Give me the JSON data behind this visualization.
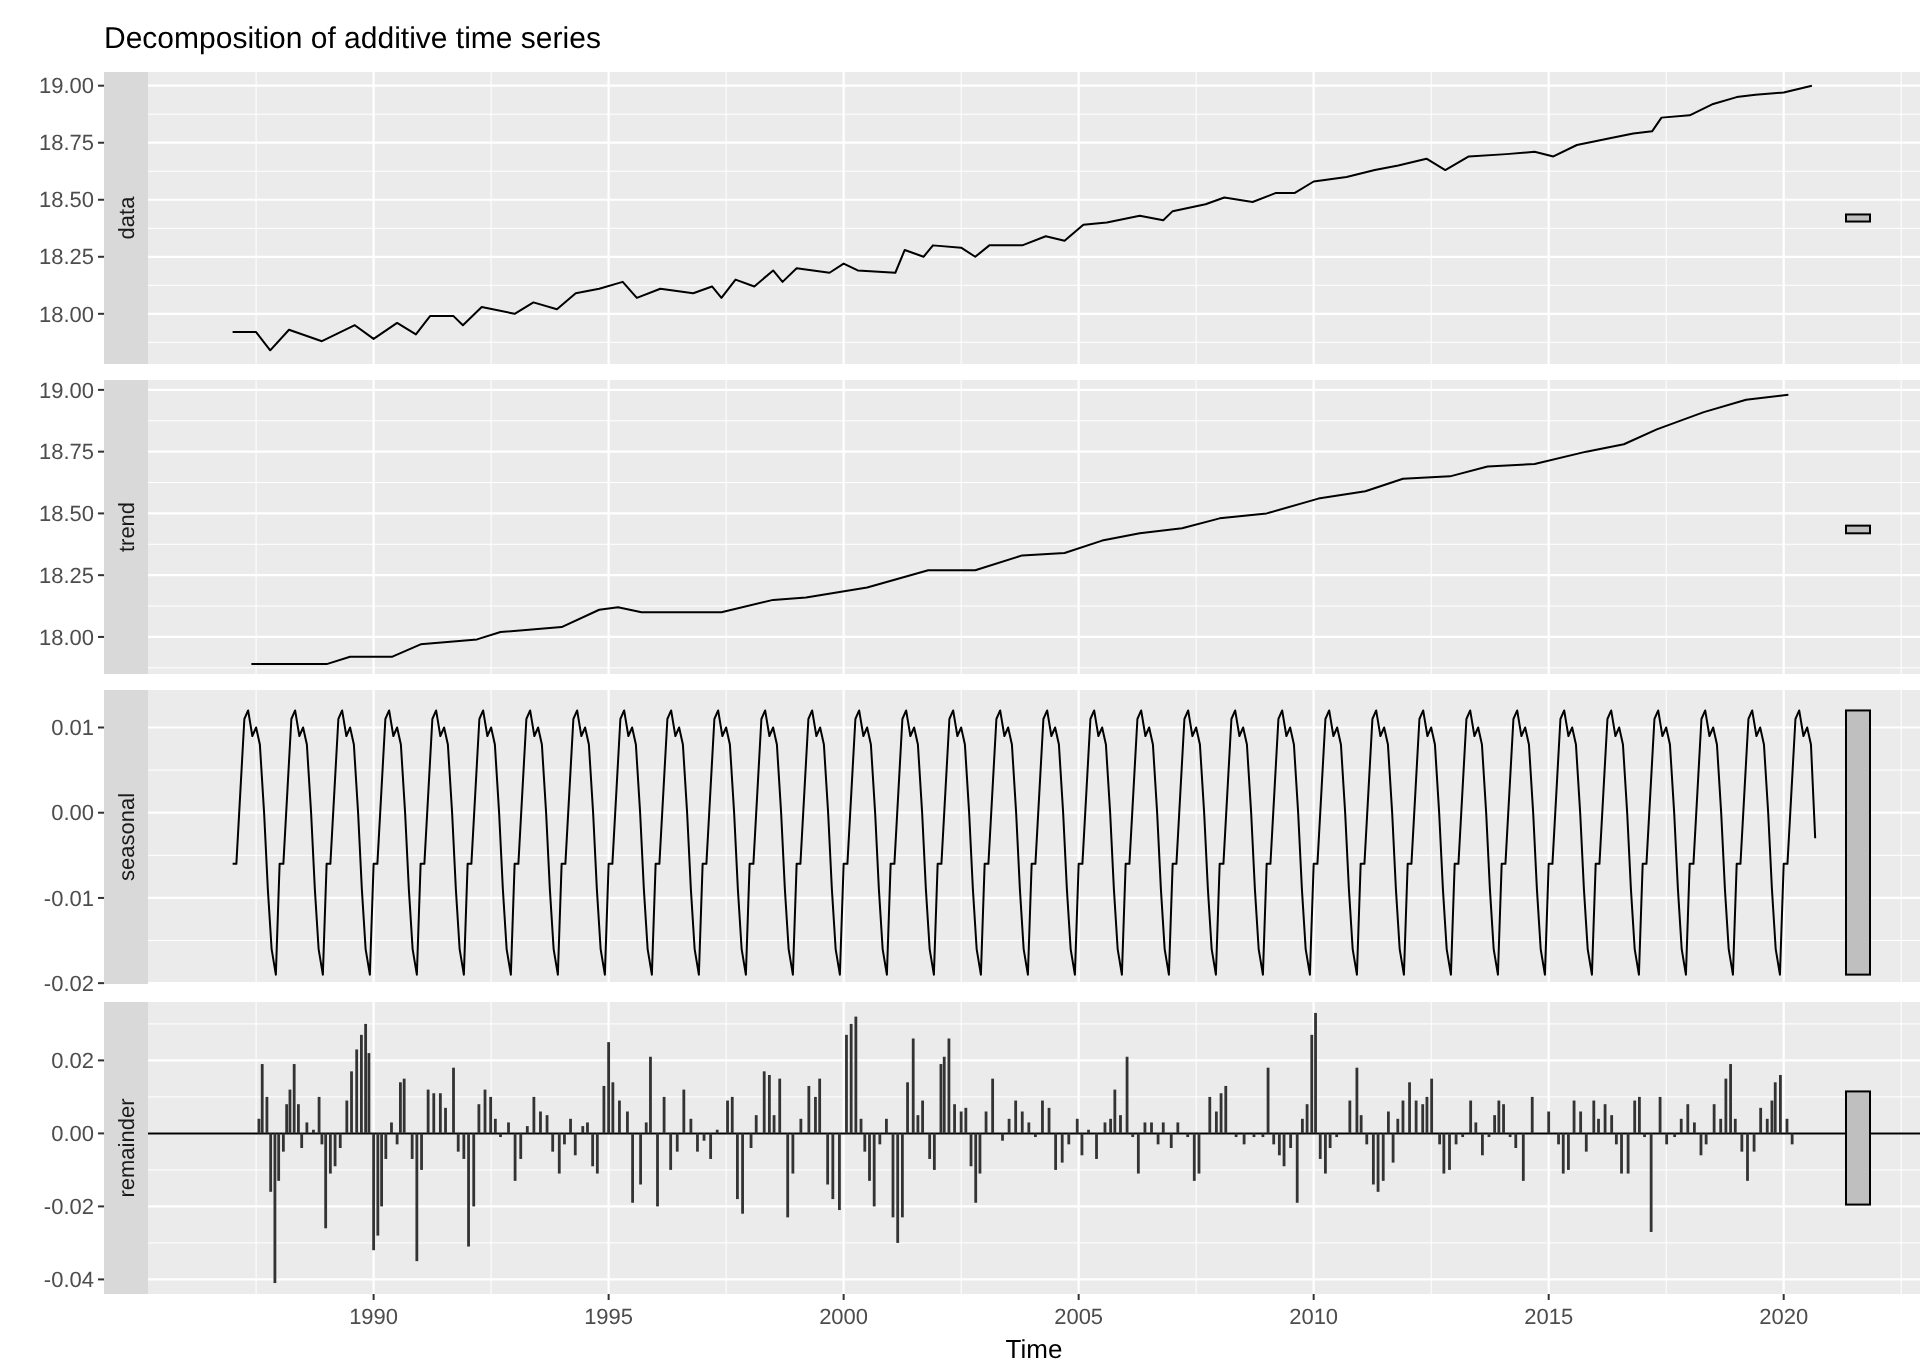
{
  "chart_data": [
    {
      "type": "line",
      "title": "Decomposition of additive time series",
      "ylabel": "data",
      "xlim": [
        1985.2,
        2022.9
      ],
      "xticks": [
        1990,
        1995,
        2000,
        2005,
        2010,
        2015,
        2020
      ],
      "ylim": [
        17.78,
        19.06
      ],
      "yticks": [
        {
          "value": 18,
          "label": "18.00"
        },
        {
          "value": 18.25,
          "label": "18.25"
        },
        {
          "value": 18.5,
          "label": "18.50"
        },
        {
          "value": 18.75,
          "label": "18.75"
        },
        {
          "value": 19,
          "label": "19.00"
        }
      ],
      "grid": true,
      "tick_labels": "y",
      "series": [
        {
          "color": "#000000",
          "x": [
            1987.0,
            1987.5,
            1987.8,
            1988.2,
            1988.9,
            1989.6,
            1990.0,
            1990.5,
            1990.9,
            1991.2,
            1991.7,
            1991.9,
            1992.3,
            1993.0,
            1993.4,
            1993.9,
            1994.3,
            1994.8,
            1995.3,
            1995.6,
            1996.1,
            1996.8,
            1997.2,
            1997.4,
            1997.7,
            1998.1,
            1998.5,
            1998.7,
            1999.0,
            1999.7,
            2000.0,
            2000.3,
            2001.1,
            2001.3,
            2001.7,
            2001.9,
            2002.5,
            2002.8,
            2003.1,
            2003.8,
            2004.3,
            2004.7,
            2005.1,
            2005.6,
            2006.3,
            2006.8,
            2007.0,
            2007.7,
            2008.1,
            2008.7,
            2009.2,
            2009.6,
            2010.0,
            2010.7,
            2011.3,
            2011.8,
            2012.4,
            2012.8,
            2013.3,
            2014.1,
            2014.7,
            2015.1,
            2015.6,
            2016.3,
            2016.8,
            2017.2,
            2017.4,
            2018.0,
            2018.5,
            2019.0,
            2019.4,
            2020.0,
            2020.6
          ],
          "values": [
            17.92,
            17.92,
            17.84,
            17.93,
            17.88,
            17.95,
            17.89,
            17.96,
            17.91,
            17.99,
            17.99,
            17.95,
            18.03,
            18.0,
            18.05,
            18.02,
            18.09,
            18.11,
            18.14,
            18.07,
            18.11,
            18.09,
            18.12,
            18.07,
            18.15,
            18.12,
            18.19,
            18.14,
            18.2,
            18.18,
            18.22,
            18.19,
            18.18,
            18.28,
            18.25,
            18.3,
            18.29,
            18.25,
            18.3,
            18.3,
            18.34,
            18.32,
            18.39,
            18.4,
            18.43,
            18.41,
            18.45,
            18.48,
            18.51,
            18.49,
            18.53,
            18.53,
            18.58,
            18.6,
            18.63,
            18.65,
            18.68,
            18.63,
            18.69,
            18.7,
            18.71,
            18.69,
            18.74,
            18.77,
            18.79,
            18.8,
            18.86,
            18.87,
            18.92,
            18.95,
            18.96,
            18.97,
            19.0
          ]
        }
      ]
    },
    {
      "type": "line",
      "ylabel": "trend",
      "xlim": [
        1985.2,
        2022.9
      ],
      "xticks": [
        1990,
        1995,
        2000,
        2005,
        2010,
        2015,
        2020
      ],
      "ylim": [
        17.85,
        19.04
      ],
      "yticks": [
        {
          "value": 18,
          "label": "18.00"
        },
        {
          "value": 18.25,
          "label": "18.25"
        },
        {
          "value": 18.5,
          "label": "18.50"
        },
        {
          "value": 18.75,
          "label": "18.75"
        },
        {
          "value": 19,
          "label": "19.00"
        }
      ],
      "grid": true,
      "tick_labels": "y",
      "series": [
        {
          "color": "#000000",
          "x": [
            1987.4,
            1989.0,
            1989.5,
            1990.4,
            1991.0,
            1992.2,
            1992.7,
            1994.0,
            1994.8,
            1995.2,
            1995.7,
            1997.4,
            1998.5,
            1999.2,
            2000.5,
            2001.8,
            2002.8,
            2003.8,
            2004.7,
            2005.5,
            2006.3,
            2007.2,
            2008.0,
            2009.0,
            2010.1,
            2011.1,
            2011.9,
            2012.9,
            2013.7,
            2014.7,
            2015.8,
            2016.6,
            2017.3,
            2018.3,
            2019.2,
            2020.1
          ],
          "values": [
            17.89,
            17.89,
            17.92,
            17.92,
            17.97,
            17.99,
            18.02,
            18.04,
            18.11,
            18.12,
            18.1,
            18.1,
            18.15,
            18.16,
            18.2,
            18.27,
            18.27,
            18.33,
            18.34,
            18.39,
            18.42,
            18.44,
            18.48,
            18.5,
            18.56,
            18.59,
            18.64,
            18.65,
            18.69,
            18.7,
            18.75,
            18.78,
            18.84,
            18.91,
            18.96,
            18.98
          ]
        }
      ]
    },
    {
      "type": "line",
      "ylabel": "seasonal",
      "xlim": [
        1985.2,
        2022.9
      ],
      "xticks": [
        1990,
        1995,
        2000,
        2005,
        2010,
        2015,
        2020
      ],
      "ylim": [
        -0.0201,
        0.0144
      ],
      "yticks": [
        {
          "value": -0.02,
          "label": "-0.02"
        },
        {
          "value": -0.01,
          "label": "-0.01"
        },
        {
          "value": 0,
          "label": "0.00"
        },
        {
          "value": 0.01,
          "label": "0.01"
        }
      ],
      "grid": true,
      "tick_labels": "y",
      "series": [
        {
          "color": "#000000",
          "x": [
            1987.0,
            1987.08,
            1987.17,
            1987.25,
            1987.33,
            1987.42,
            1987.5,
            1987.58,
            1987.67,
            1987.75,
            1987.83,
            1987.92,
            1988.0,
            1988.08,
            1988.17,
            1988.25,
            1988.33,
            1988.42,
            1988.5,
            1988.58,
            1988.67,
            1988.75,
            1988.83,
            1988.92,
            1989.0,
            1989.08,
            1989.17,
            1989.25,
            1989.33,
            1989.42,
            1989.5,
            1989.58,
            1989.67,
            1989.75,
            1989.83,
            1989.92,
            1990.0,
            1990.08,
            1990.17,
            1990.25,
            1990.33,
            1990.42,
            1990.5,
            1990.58,
            1990.67,
            1990.75,
            1990.83,
            1990.92,
            1991.0,
            1991.08,
            1991.17,
            1991.25,
            1991.33,
            1991.42,
            1991.5,
            1991.58,
            1991.67,
            1991.75,
            1991.83,
            1991.92,
            1992.0,
            1992.08,
            1992.17,
            1992.25,
            1992.33,
            1992.42,
            1992.5,
            1992.58,
            1992.67,
            1992.75,
            1992.83,
            1992.92,
            1993.0,
            1993.08,
            1993.17,
            1993.25,
            1993.33,
            1993.42,
            1993.5,
            1993.58,
            1993.67,
            1993.75,
            1993.83,
            1993.92,
            1994.0,
            1994.08,
            1994.17,
            1994.25,
            1994.33,
            1994.42,
            1994.5,
            1994.58,
            1994.67,
            1994.75,
            1994.83,
            1994.92,
            1995.0,
            1995.08,
            1995.17,
            1995.25,
            1995.33,
            1995.42,
            1995.5,
            1995.58,
            1995.67,
            1995.75,
            1995.83,
            1995.92,
            1996.0,
            1996.08,
            1996.17,
            1996.25,
            1996.33,
            1996.42,
            1996.5,
            1996.58,
            1996.67,
            1996.75,
            1996.83,
            1996.92,
            1997.0,
            1997.08,
            1997.17,
            1997.25,
            1997.33,
            1997.42,
            1997.5,
            1997.58,
            1997.67,
            1997.75,
            1997.83,
            1997.92,
            1998.0,
            1998.08,
            1998.17,
            1998.25,
            1998.33,
            1998.42,
            1998.5,
            1998.58,
            1998.67,
            1998.75,
            1998.83,
            1998.92,
            1999.0,
            1999.08,
            1999.17,
            1999.25,
            1999.33,
            1999.42,
            1999.5,
            1999.58,
            1999.67,
            1999.75,
            1999.83,
            1999.92,
            2000.0,
            2000.08,
            2000.17,
            2000.25,
            2000.33,
            2000.42,
            2000.5,
            2000.58,
            2000.67,
            2000.75,
            2000.83,
            2000.92,
            2001.0,
            2001.08,
            2001.17,
            2001.25,
            2001.33,
            2001.42,
            2001.5,
            2001.58,
            2001.67,
            2001.75,
            2001.83,
            2001.92,
            2002.0,
            2002.08,
            2002.17,
            2002.25,
            2002.33,
            2002.42,
            2002.5,
            2002.58,
            2002.67,
            2002.75,
            2002.83,
            2002.92,
            2003.0,
            2003.08,
            2003.17,
            2003.25,
            2003.33,
            2003.42,
            2003.5,
            2003.58,
            2003.67,
            2003.75,
            2003.83,
            2003.92,
            2004.0,
            2004.08,
            2004.17,
            2004.25,
            2004.33,
            2004.42,
            2004.5,
            2004.58,
            2004.67,
            2004.75,
            2004.83,
            2004.92,
            2005.0,
            2005.08,
            2005.17,
            2005.25,
            2005.33,
            2005.42,
            2005.5,
            2005.58,
            2005.67,
            2005.75,
            2005.83,
            2005.92,
            2006.0,
            2006.08,
            2006.17,
            2006.25,
            2006.33,
            2006.42,
            2006.5,
            2006.58,
            2006.67,
            2006.75,
            2006.83,
            2006.92,
            2007.0,
            2007.08,
            2007.17,
            2007.25,
            2007.33,
            2007.42,
            2007.5,
            2007.58,
            2007.67,
            2007.75,
            2007.83,
            2007.92,
            2008.0,
            2008.08,
            2008.17,
            2008.25,
            2008.33,
            2008.42,
            2008.5,
            2008.58,
            2008.67,
            2008.75,
            2008.83,
            2008.92,
            2009.0,
            2009.08,
            2009.17,
            2009.25,
            2009.33,
            2009.42,
            2009.5,
            2009.58,
            2009.67,
            2009.75,
            2009.83,
            2009.92,
            2010.0,
            2010.08,
            2010.17,
            2010.25,
            2010.33,
            2010.42,
            2010.5,
            2010.58,
            2010.67,
            2010.75,
            2010.83,
            2010.92,
            2011.0,
            2011.08,
            2011.17,
            2011.25,
            2011.33,
            2011.42,
            2011.5,
            2011.58,
            2011.67,
            2011.75,
            2011.83,
            2011.92,
            2012.0,
            2012.08,
            2012.17,
            2012.25,
            2012.33,
            2012.42,
            2012.5,
            2012.58,
            2012.67,
            2012.75,
            2012.83,
            2012.92,
            2013.0,
            2013.08,
            2013.17,
            2013.25,
            2013.33,
            2013.42,
            2013.5,
            2013.58,
            2013.67,
            2013.75,
            2013.83,
            2013.92,
            2014.0,
            2014.08,
            2014.17,
            2014.25,
            2014.33,
            2014.42,
            2014.5,
            2014.58,
            2014.67,
            2014.75,
            2014.83,
            2014.92,
            2015.0,
            2015.08,
            2015.17,
            2015.25,
            2015.33,
            2015.42,
            2015.5,
            2015.58,
            2015.67,
            2015.75,
            2015.83,
            2015.92,
            2016.0,
            2016.08,
            2016.17,
            2016.25,
            2016.33,
            2016.42,
            2016.5,
            2016.58,
            2016.67,
            2016.75,
            2016.83,
            2016.92,
            2017.0,
            2017.08,
            2017.17,
            2017.25,
            2017.33,
            2017.42,
            2017.5,
            2017.58,
            2017.67,
            2017.75,
            2017.83,
            2017.92,
            2018.0,
            2018.08,
            2018.17,
            2018.25,
            2018.33,
            2018.42,
            2018.5,
            2018.58,
            2018.67,
            2018.75,
            2018.83,
            2018.92,
            2019.0,
            2019.08,
            2019.17,
            2019.25,
            2019.33,
            2019.42,
            2019.5,
            2019.58,
            2019.67,
            2019.75,
            2019.83,
            2019.92,
            2020.0,
            2020.08,
            2020.17,
            2020.25,
            2020.33,
            2020.42,
            2020.5,
            2020.58,
            2020.67
          ],
          "values": [
            -0.006,
            -0.006,
            0.003,
            0.011,
            0.012,
            0.009,
            0.01,
            0.008,
            0.0,
            -0.009,
            -0.016,
            -0.019,
            -0.006,
            -0.006,
            0.003,
            0.011,
            0.012,
            0.009,
            0.01,
            0.008,
            0.0,
            -0.009,
            -0.016,
            -0.019,
            -0.006,
            -0.006,
            0.003,
            0.011,
            0.012,
            0.009,
            0.01,
            0.008,
            0.0,
            -0.009,
            -0.016,
            -0.019,
            -0.006,
            -0.006,
            0.003,
            0.011,
            0.012,
            0.009,
            0.01,
            0.008,
            0.0,
            -0.009,
            -0.016,
            -0.019,
            -0.006,
            -0.006,
            0.003,
            0.011,
            0.012,
            0.009,
            0.01,
            0.008,
            0.0,
            -0.009,
            -0.016,
            -0.019,
            -0.006,
            -0.006,
            0.003,
            0.011,
            0.012,
            0.009,
            0.01,
            0.008,
            0.0,
            -0.009,
            -0.016,
            -0.019,
            -0.006,
            -0.006,
            0.003,
            0.011,
            0.012,
            0.009,
            0.01,
            0.008,
            0.0,
            -0.009,
            -0.016,
            -0.019,
            -0.006,
            -0.006,
            0.003,
            0.011,
            0.012,
            0.009,
            0.01,
            0.008,
            0.0,
            -0.009,
            -0.016,
            -0.019,
            -0.006,
            -0.006,
            0.003,
            0.011,
            0.012,
            0.009,
            0.01,
            0.008,
            0.0,
            -0.009,
            -0.016,
            -0.019,
            -0.006,
            -0.006,
            0.003,
            0.011,
            0.012,
            0.009,
            0.01,
            0.008,
            0.0,
            -0.009,
            -0.016,
            -0.019,
            -0.006,
            -0.006,
            0.003,
            0.011,
            0.012,
            0.009,
            0.01,
            0.008,
            0.0,
            -0.009,
            -0.016,
            -0.019,
            -0.006,
            -0.006,
            0.003,
            0.011,
            0.012,
            0.009,
            0.01,
            0.008,
            0.0,
            -0.009,
            -0.016,
            -0.019,
            -0.006,
            -0.006,
            0.003,
            0.011,
            0.012,
            0.009,
            0.01,
            0.008,
            0.0,
            -0.009,
            -0.016,
            -0.019,
            -0.006,
            -0.006,
            0.003,
            0.011,
            0.012,
            0.009,
            0.01,
            0.008,
            0.0,
            -0.009,
            -0.016,
            -0.019,
            -0.006,
            -0.006,
            0.003,
            0.011,
            0.012,
            0.009,
            0.01,
            0.008,
            0.0,
            -0.009,
            -0.016,
            -0.019,
            -0.006,
            -0.006,
            0.003,
            0.011,
            0.012,
            0.009,
            0.01,
            0.008,
            0.0,
            -0.009,
            -0.016,
            -0.019,
            -0.006,
            -0.006,
            0.003,
            0.011,
            0.012,
            0.009,
            0.01,
            0.008,
            0.0,
            -0.009,
            -0.016,
            -0.019,
            -0.006,
            -0.006,
            0.003,
            0.011,
            0.012,
            0.009,
            0.01,
            0.008,
            0.0,
            -0.009,
            -0.016,
            -0.019,
            -0.006,
            -0.006,
            0.003,
            0.011,
            0.012,
            0.009,
            0.01,
            0.008,
            0.0,
            -0.009,
            -0.016,
            -0.019,
            -0.006,
            -0.006,
            0.003,
            0.011,
            0.012,
            0.009,
            0.01,
            0.008,
            0.0,
            -0.009,
            -0.016,
            -0.019,
            -0.006,
            -0.006,
            0.003,
            0.011,
            0.012,
            0.009,
            0.01,
            0.008,
            0.0,
            -0.009,
            -0.016,
            -0.019,
            -0.006,
            -0.006,
            0.003,
            0.011,
            0.012,
            0.009,
            0.01,
            0.008,
            0.0,
            -0.009,
            -0.016,
            -0.019,
            -0.006,
            -0.006,
            0.003,
            0.011,
            0.012,
            0.009,
            0.01,
            0.008,
            0.0,
            -0.009,
            -0.016,
            -0.019,
            -0.006,
            -0.006,
            0.003,
            0.011,
            0.012,
            0.009,
            0.01,
            0.008,
            0.0,
            -0.009,
            -0.016,
            -0.019,
            -0.006,
            -0.006,
            0.003,
            0.011,
            0.012,
            0.009,
            0.01,
            0.008,
            0.0,
            -0.009,
            -0.016,
            -0.019,
            -0.006,
            -0.006,
            0.003,
            0.011,
            0.012,
            0.009,
            0.01,
            0.008,
            0.0,
            -0.009,
            -0.016,
            -0.019,
            -0.006,
            -0.006,
            0.003,
            0.011,
            0.012,
            0.009,
            0.01,
            0.008,
            0.0,
            -0.009,
            -0.016,
            -0.019,
            -0.006,
            -0.006,
            0.003,
            0.011,
            0.012,
            0.009,
            0.01,
            0.008,
            0.0,
            -0.009,
            -0.016,
            -0.019,
            -0.006,
            -0.006,
            0.003,
            0.011,
            0.012,
            0.009,
            0.01,
            0.008,
            0.0,
            -0.009,
            -0.016,
            -0.019,
            -0.006,
            -0.006,
            0.003,
            0.011,
            0.012,
            0.009,
            0.01,
            0.008,
            0.0,
            -0.009,
            -0.016,
            -0.019,
            -0.006,
            -0.006,
            0.003,
            0.011,
            0.012,
            0.009,
            0.01,
            0.008,
            0.0,
            -0.009,
            -0.016,
            -0.019,
            -0.006,
            -0.006,
            0.003,
            0.011,
            0.012,
            0.009,
            0.01,
            0.008,
            0.0,
            -0.009,
            -0.016,
            -0.019,
            -0.006,
            -0.006,
            0.003,
            0.011,
            0.012,
            0.009,
            0.01,
            0.008,
            0.0,
            -0.009,
            -0.016,
            -0.019,
            -0.006,
            -0.006,
            0.003,
            0.011,
            0.012,
            0.009,
            0.01,
            0.008,
            -0.003
          ]
        }
      ]
    },
    {
      "type": "bar",
      "ylabel": "remainder",
      "xlabel": "Time",
      "xlim": [
        1985.2,
        2022.9
      ],
      "xticks": [
        1990,
        1995,
        2000,
        2005,
        2010,
        2015,
        2020
      ],
      "ylim": [
        -0.044,
        0.036
      ],
      "yticks": [
        {
          "value": -0.04,
          "label": "-0.04"
        },
        {
          "value": -0.02,
          "label": "-0.02"
        },
        {
          "value": 0,
          "label": "0.00"
        },
        {
          "value": 0.02,
          "label": "0.02"
        }
      ],
      "grid": true,
      "ref_lines": [
        {
          "axis": "y",
          "value": 0,
          "color": "#000000"
        }
      ],
      "series": [
        {
          "color": "#333333",
          "x": [
            1987.56,
            1987.63,
            1987.73,
            1987.81,
            1987.9,
            1987.98,
            1988.08,
            1988.15,
            1988.22,
            1988.31,
            1988.4,
            1988.47,
            1988.58,
            1988.72,
            1988.84,
            1988.9,
            1988.98,
            1989.08,
            1989.18,
            1989.29,
            1989.43,
            1989.53,
            1989.64,
            1989.74,
            1989.83,
            1989.9,
            1990.0,
            1990.09,
            1990.17,
            1990.26,
            1990.38,
            1990.5,
            1990.57,
            1990.65,
            1990.82,
            1990.92,
            1991.02,
            1991.16,
            1991.28,
            1991.42,
            1991.53,
            1991.7,
            1991.8,
            1991.92,
            1992.02,
            1992.13,
            1992.24,
            1992.37,
            1992.49,
            1992.59,
            1992.7,
            1992.87,
            1993.01,
            1993.13,
            1993.27,
            1993.41,
            1993.55,
            1993.69,
            1993.81,
            1993.95,
            1994.06,
            1994.19,
            1994.29,
            1994.45,
            1994.55,
            1994.66,
            1994.76,
            1994.9,
            1995.0,
            1995.09,
            1995.23,
            1995.4,
            1995.51,
            1995.68,
            1995.8,
            1995.89,
            1996.04,
            1996.18,
            1996.32,
            1996.46,
            1996.6,
            1996.75,
            1996.89,
            1997.03,
            1997.17,
            1997.31,
            1997.53,
            1997.63,
            1997.74,
            1997.85,
            1998.03,
            1998.14,
            1998.31,
            1998.42,
            1998.52,
            1998.64,
            1998.81,
            1998.92,
            1999.09,
            1999.26,
            1999.4,
            1999.49,
            1999.66,
            1999.77,
            1999.91,
            2000.06,
            2000.16,
            2000.26,
            2000.37,
            2000.45,
            2000.55,
            2000.65,
            2000.77,
            2000.91,
            2001.05,
            2001.15,
            2001.25,
            2001.36,
            2001.48,
            2001.58,
            2001.68,
            2001.83,
            2001.93,
            2002.07,
            2002.14,
            2002.24,
            2002.36,
            2002.5,
            2002.6,
            2002.71,
            2002.81,
            2002.9,
            2003.03,
            2003.17,
            2003.38,
            2003.52,
            2003.66,
            2003.8,
            2003.94,
            2004.08,
            2004.23,
            2004.37,
            2004.51,
            2004.65,
            2004.79,
            2004.97,
            2005.07,
            2005.21,
            2005.38,
            2005.56,
            2005.68,
            2005.77,
            2005.89,
            2006.03,
            2006.15,
            2006.27,
            2006.41,
            2006.55,
            2006.69,
            2006.8,
            2006.97,
            2007.11,
            2007.32,
            2007.46,
            2007.56,
            2007.79,
            2007.93,
            2008.03,
            2008.13,
            2008.35,
            2008.52,
            2008.73,
            2008.92,
            2009.03,
            2009.15,
            2009.27,
            2009.37,
            2009.51,
            2009.65,
            2009.76,
            2009.86,
            2009.96,
            2010.04,
            2010.14,
            2010.25,
            2010.35,
            2010.49,
            2010.77,
            2010.92,
            2011.01,
            2011.13,
            2011.27,
            2011.37,
            2011.48,
            2011.59,
            2011.69,
            2011.79,
            2011.9,
            2012.04,
            2012.18,
            2012.32,
            2012.41,
            2012.51,
            2012.68,
            2012.77,
            2012.89,
            2013.03,
            2013.17,
            2013.34,
            2013.45,
            2013.59,
            2013.73,
            2013.85,
            2013.94,
            2014.04,
            2014.18,
            2014.3,
            2014.46,
            2014.65,
            2015.0,
            2015.21,
            2015.31,
            2015.42,
            2015.54,
            2015.68,
            2015.8,
            2015.96,
            2016.06,
            2016.2,
            2016.34,
            2016.44,
            2016.55,
            2016.69,
            2016.83,
            2016.93,
            2017.04,
            2017.18,
            2017.37,
            2017.51,
            2017.68,
            2017.82,
            2017.96,
            2018.1,
            2018.24,
            2018.35,
            2018.52,
            2018.66,
            2018.77,
            2018.87,
            2018.97,
            2019.11,
            2019.23,
            2019.37,
            2019.51,
            2019.65,
            2019.75,
            2019.82,
            2019.93,
            2020.07,
            2020.18
          ],
          "values": [
            0.004,
            0.019,
            0.01,
            -0.016,
            -0.041,
            -0.013,
            -0.005,
            0.008,
            0.012,
            0.019,
            0.008,
            -0.004,
            0.003,
            0.001,
            0.01,
            -0.003,
            -0.026,
            -0.011,
            -0.009,
            -0.004,
            0.009,
            0.017,
            0.023,
            0.027,
            0.03,
            0.022,
            -0.032,
            -0.028,
            -0.02,
            -0.007,
            0.003,
            -0.003,
            0.014,
            0.015,
            -0.007,
            -0.035,
            -0.01,
            0.012,
            0.011,
            0.011,
            0.007,
            0.018,
            -0.005,
            -0.007,
            -0.031,
            -0.02,
            0.008,
            0.012,
            0.01,
            0.004,
            -0.001,
            0.003,
            -0.013,
            -0.007,
            0.002,
            0.01,
            0.006,
            0.005,
            -0.005,
            -0.011,
            -0.003,
            0.004,
            -0.006,
            0.002,
            0.003,
            -0.009,
            -0.011,
            0.013,
            0.025,
            0.014,
            0.009,
            0.006,
            -0.019,
            -0.014,
            0.003,
            0.021,
            -0.02,
            0.01,
            -0.01,
            -0.005,
            0.012,
            0.004,
            -0.005,
            -0.002,
            -0.007,
            0.001,
            0.009,
            0.01,
            -0.018,
            -0.022,
            -0.004,
            0.005,
            0.017,
            0.016,
            0.005,
            0.015,
            -0.023,
            -0.011,
            0.004,
            0.013,
            0.01,
            0.015,
            -0.014,
            -0.018,
            -0.021,
            0.027,
            0.03,
            0.032,
            0.004,
            -0.005,
            -0.013,
            -0.02,
            -0.003,
            0.004,
            -0.023,
            -0.03,
            -0.023,
            0.014,
            0.026,
            0.005,
            0.009,
            -0.007,
            -0.01,
            0.019,
            0.021,
            0.026,
            0.008,
            0.006,
            0.007,
            -0.009,
            -0.019,
            -0.011,
            0.006,
            0.015,
            -0.002,
            0.004,
            0.009,
            0.006,
            0.003,
            -0.001,
            0.009,
            0.007,
            -0.01,
            -0.008,
            -0.003,
            0.004,
            -0.006,
            0.001,
            -0.007,
            0.003,
            0.004,
            0.012,
            0.005,
            0.021,
            -0.001,
            -0.011,
            0.003,
            0.003,
            -0.003,
            0.003,
            -0.004,
            0.003,
            -0.001,
            -0.013,
            -0.011,
            0.01,
            0.006,
            0.011,
            0.013,
            -0.001,
            -0.003,
            -0.001,
            -0.001,
            0.018,
            -0.003,
            -0.006,
            -0.009,
            -0.004,
            -0.019,
            0.004,
            0.008,
            0.027,
            0.033,
            -0.007,
            -0.011,
            -0.004,
            -0.001,
            0.009,
            0.018,
            0.005,
            -0.003,
            -0.014,
            -0.016,
            -0.013,
            0.006,
            -0.008,
            0.004,
            0.009,
            0.014,
            0.009,
            0.008,
            0.01,
            0.015,
            -0.003,
            -0.011,
            -0.01,
            -0.003,
            -0.001,
            0.009,
            0.003,
            -0.006,
            -0.001,
            0.005,
            0.009,
            0.008,
            -0.001,
            -0.004,
            -0.013,
            0.01,
            0.006,
            -0.003,
            -0.011,
            -0.01,
            0.009,
            0.006,
            -0.005,
            0.009,
            0.004,
            0.008,
            0.005,
            -0.003,
            -0.011,
            -0.011,
            0.009,
            0.01,
            -0.001,
            -0.027,
            0.01,
            -0.003,
            -0.001,
            0.004,
            0.008,
            0.003,
            -0.006,
            -0.003,
            0.008,
            0.004,
            0.015,
            0.019,
            0.004,
            -0.005,
            -0.013,
            -0.005,
            0.007,
            0.004,
            0.009,
            0.014,
            0.016,
            0.004,
            -0.003
          ]
        }
      ]
    }
  ]
}
